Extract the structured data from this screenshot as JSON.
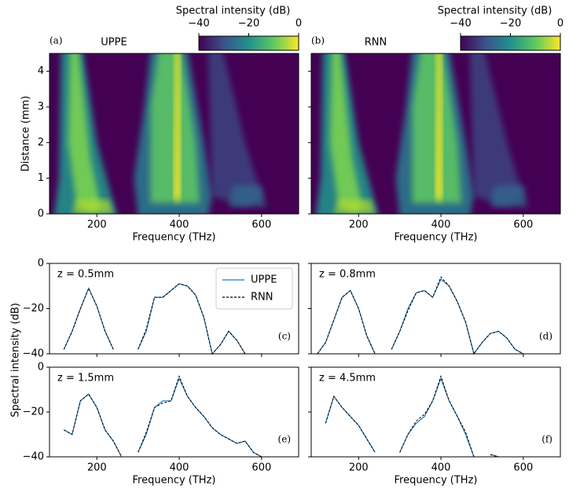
{
  "chart_data": [
    {
      "type": "heatmap",
      "panel_label": "(a)",
      "title": "UPPE",
      "xlabel": "Frequency (THz)",
      "ylabel": "Distance (mm)",
      "xlim": [
        85,
        690
      ],
      "xticks": [
        200,
        400,
        600
      ],
      "ylim": [
        0,
        4.5
      ],
      "yticks": [
        0,
        1,
        2,
        3,
        4
      ],
      "show_ytick_labels": true,
      "colorbar": {
        "label": "Spectral intensity (dB)",
        "lim": [
          -40,
          0
        ],
        "ticks": [
          {
            "value": -40,
            "label": "−40"
          },
          {
            "value": -20,
            "label": "−20"
          },
          0
        ]
      }
    },
    {
      "type": "heatmap",
      "panel_label": "(b)",
      "title": "RNN",
      "xlabel": "Frequency (THz)",
      "xlim": [
        85,
        690
      ],
      "xticks": [
        200,
        400,
        600
      ],
      "ylim": [
        0,
        4.5
      ],
      "yticks": [
        0,
        1,
        2,
        3,
        4
      ],
      "show_ytick_labels": false,
      "colorbar": {
        "label": "Spectral intensity (dB)",
        "lim": [
          -40,
          0
        ],
        "ticks": [
          {
            "value": -40,
            "label": "−40"
          },
          {
            "value": -20,
            "label": "−20"
          },
          0
        ]
      }
    },
    {
      "type": "line",
      "panel_label": "(c)",
      "annotation": "z = 0.5mm",
      "ylabel": "Spectral intensity (dB)",
      "legend": true,
      "xlim": [
        85,
        690
      ],
      "xticks": [
        200,
        400,
        600
      ],
      "show_xtick_labels": false,
      "ylim": [
        -40,
        0
      ],
      "yticks": [
        {
          "value": -40,
          "label": "−40"
        },
        {
          "value": -20,
          "label": "−20"
        },
        0
      ],
      "show_ytick_labels": true,
      "x": [
        100,
        120,
        140,
        160,
        180,
        200,
        220,
        240,
        260,
        280,
        300,
        320,
        340,
        360,
        380,
        400,
        420,
        440,
        460,
        480,
        500,
        520,
        540,
        560,
        580,
        600
      ],
      "series": [
        {
          "name": "UPPE",
          "color": "#1f77b4",
          "dash": false,
          "values": [
            null,
            -38,
            -30,
            -20,
            -11,
            -19,
            -30,
            -38,
            null,
            null,
            -38,
            -30,
            -15,
            -15,
            -12,
            -9,
            -10,
            -14,
            -24,
            -40,
            -36,
            -30,
            -34,
            -40,
            null,
            null
          ]
        },
        {
          "name": "RNN",
          "color": "#000000",
          "dash": true,
          "values": [
            null,
            -38,
            -30,
            -20,
            -11,
            -19,
            -30,
            -38,
            null,
            null,
            -38,
            -29,
            -15,
            -15,
            -12,
            -9,
            -10,
            -14,
            -24,
            -40,
            -36,
            -30,
            -34,
            -40,
            null,
            null
          ]
        }
      ]
    },
    {
      "type": "line",
      "panel_label": "(d)",
      "annotation": "z = 0.8mm",
      "legend": false,
      "xlim": [
        85,
        690
      ],
      "xticks": [
        200,
        400,
        600
      ],
      "show_xtick_labels": false,
      "ylim": [
        -40,
        0
      ],
      "yticks": [
        -40,
        -20,
        0
      ],
      "show_ytick_labels": false,
      "x": [
        100,
        120,
        140,
        160,
        180,
        200,
        220,
        240,
        260,
        280,
        300,
        320,
        340,
        360,
        380,
        400,
        420,
        440,
        460,
        480,
        500,
        520,
        540,
        560,
        580,
        600
      ],
      "series": [
        {
          "color": "#1f77b4",
          "dash": false,
          "values": [
            -40,
            -35,
            -25,
            -15,
            -12,
            -20,
            -32,
            -40,
            null,
            -38,
            -30,
            -20,
            -13,
            -12,
            -15,
            -7,
            -10,
            -17,
            -26,
            -40,
            -35,
            -31,
            -30,
            -33,
            -38,
            -40
          ]
        },
        {
          "color": "#000000",
          "dash": true,
          "values": [
            -40,
            -35,
            -25,
            -15,
            -12,
            -20,
            -32,
            -40,
            null,
            -38,
            -30,
            -21,
            -13,
            -12,
            -15,
            -6,
            -10,
            -17,
            -26,
            -40,
            -35,
            -31,
            -30,
            -33,
            -38,
            -40
          ]
        }
      ]
    },
    {
      "type": "line",
      "panel_label": "(e)",
      "annotation": "z = 1.5mm",
      "xlabel": "Frequency (THz)",
      "legend": false,
      "xlim": [
        85,
        690
      ],
      "xticks": [
        200,
        400,
        600
      ],
      "show_xtick_labels": true,
      "ylim": [
        -40,
        0
      ],
      "yticks": [
        {
          "value": -40,
          "label": "−40"
        },
        {
          "value": -20,
          "label": "−20"
        },
        0
      ],
      "show_ytick_labels": true,
      "x": [
        100,
        120,
        140,
        160,
        180,
        200,
        220,
        240,
        260,
        280,
        300,
        320,
        340,
        360,
        380,
        400,
        420,
        440,
        460,
        480,
        500,
        520,
        540,
        560,
        580,
        600
      ],
      "series": [
        {
          "color": "#1f77b4",
          "dash": false,
          "values": [
            null,
            -28,
            -30,
            -15,
            -12,
            -18,
            -28,
            -33,
            -40,
            null,
            -38,
            -30,
            -18,
            -15,
            -15,
            -5,
            -13,
            -18,
            -22,
            -27,
            -30,
            -32,
            -34,
            -33,
            -38,
            -40
          ]
        },
        {
          "color": "#000000",
          "dash": true,
          "values": [
            null,
            -28,
            -30,
            -15,
            -12,
            -18,
            -28,
            -33,
            -40,
            null,
            -38,
            -29,
            -18,
            -16,
            -15,
            -4,
            -13,
            -18,
            -22,
            -27,
            -30,
            -32,
            -34,
            -33,
            -38,
            -40
          ]
        }
      ]
    },
    {
      "type": "line",
      "panel_label": "(f)",
      "annotation": "z = 4.5mm",
      "xlabel": "Frequency (THz)",
      "legend": false,
      "xlim": [
        85,
        690
      ],
      "xticks": [
        200,
        400,
        600
      ],
      "show_xtick_labels": true,
      "ylim": [
        -40,
        0
      ],
      "yticks": [
        -40,
        -20,
        0
      ],
      "show_ytick_labels": false,
      "x": [
        100,
        120,
        140,
        160,
        180,
        200,
        220,
        240,
        260,
        280,
        300,
        320,
        340,
        360,
        380,
        400,
        420,
        440,
        460,
        480,
        500,
        520,
        540,
        560,
        580,
        600
      ],
      "series": [
        {
          "color": "#1f77b4",
          "dash": false,
          "values": [
            null,
            -25,
            -13,
            -18,
            -22,
            -26,
            -32,
            -38,
            null,
            null,
            -38,
            -30,
            -25,
            -22,
            -15,
            -5,
            -15,
            -22,
            -30,
            -40,
            null,
            -39,
            -40,
            null,
            null,
            null
          ]
        },
        {
          "color": "#000000",
          "dash": true,
          "values": [
            null,
            -25,
            -13,
            -18,
            -22,
            -26,
            -32,
            -38,
            null,
            null,
            -38,
            -30,
            -24,
            -21,
            -15,
            -4,
            -15,
            -22,
            -29,
            -40,
            null,
            -39,
            -40,
            null,
            null,
            null
          ]
        }
      ]
    }
  ]
}
